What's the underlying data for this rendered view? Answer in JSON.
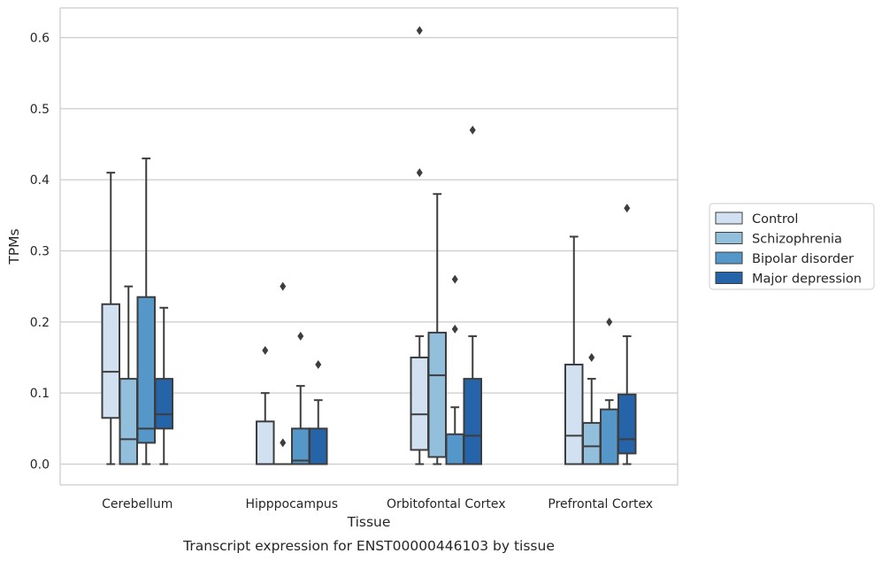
{
  "chart_data": {
    "type": "box",
    "caption": "Transcript expression for ENST00000446103 by tissue",
    "xlabel": "Tissue",
    "ylabel": "TPMs",
    "ylim": [
      -0.03,
      0.642
    ],
    "yticks": [
      "0.0",
      "0.1",
      "0.2",
      "0.3",
      "0.4",
      "0.5",
      "0.6"
    ],
    "grid": "horizontal",
    "legend_position": "right, outside plot",
    "categories": [
      "Cerebellum",
      "Hipppocampus",
      "Orbitofontal Cortex",
      "Prefrontal Cortex"
    ],
    "series": [
      {
        "name": "Control",
        "color": "#d1e1f1",
        "boxes": [
          {
            "whislo": 0.0,
            "q1": 0.065,
            "median": 0.13,
            "q3": 0.225,
            "whishi": 0.41,
            "fliers": []
          },
          {
            "whislo": 0.0,
            "q1": 0.0,
            "median": 0.0,
            "q3": 0.06,
            "whishi": 0.1,
            "fliers": [
              0.16
            ]
          },
          {
            "whislo": 0.0,
            "q1": 0.02,
            "median": 0.07,
            "q3": 0.15,
            "whishi": 0.18,
            "fliers": [
              0.41,
              0.61
            ]
          },
          {
            "whislo": 0.0,
            "q1": 0.0,
            "median": 0.04,
            "q3": 0.14,
            "whishi": 0.32,
            "fliers": []
          }
        ]
      },
      {
        "name": "Schizophrenia",
        "color": "#92bfdc",
        "boxes": [
          {
            "whislo": 0.0,
            "q1": 0.0,
            "median": 0.035,
            "q3": 0.12,
            "whishi": 0.25,
            "fliers": []
          },
          {
            "whislo": 0.0,
            "q1": 0.0,
            "median": 0.0,
            "q3": 0.0,
            "whishi": 0.0,
            "fliers": [
              0.03,
              0.25
            ]
          },
          {
            "whislo": 0.0,
            "q1": 0.01,
            "median": 0.125,
            "q3": 0.185,
            "whishi": 0.38,
            "fliers": []
          },
          {
            "whislo": 0.0,
            "q1": 0.0,
            "median": 0.025,
            "q3": 0.058,
            "whishi": 0.12,
            "fliers": [
              0.15
            ]
          }
        ]
      },
      {
        "name": "Bipolar disorder",
        "color": "#5597c8",
        "boxes": [
          {
            "whislo": 0.0,
            "q1": 0.03,
            "median": 0.05,
            "q3": 0.235,
            "whishi": 0.43,
            "fliers": []
          },
          {
            "whislo": 0.0,
            "q1": 0.0,
            "median": 0.005,
            "q3": 0.05,
            "whishi": 0.11,
            "fliers": [
              0.18
            ]
          },
          {
            "whislo": 0.0,
            "q1": 0.0,
            "median": 0.0,
            "q3": 0.042,
            "whishi": 0.08,
            "fliers": [
              0.19,
              0.26
            ]
          },
          {
            "whislo": 0.0,
            "q1": 0.0,
            "median": 0.0,
            "q3": 0.077,
            "whishi": 0.09,
            "fliers": [
              0.2
            ]
          }
        ]
      },
      {
        "name": "Major depression",
        "color": "#2664a9",
        "boxes": [
          {
            "whislo": 0.0,
            "q1": 0.05,
            "median": 0.07,
            "q3": 0.12,
            "whishi": 0.22,
            "fliers": []
          },
          {
            "whislo": 0.0,
            "q1": 0.0,
            "median": 0.0,
            "q3": 0.05,
            "whishi": 0.09,
            "fliers": [
              0.14
            ]
          },
          {
            "whislo": 0.0,
            "q1": 0.0,
            "median": 0.04,
            "q3": 0.12,
            "whishi": 0.18,
            "fliers": [
              0.47
            ]
          },
          {
            "whislo": 0.0,
            "q1": 0.015,
            "median": 0.035,
            "q3": 0.098,
            "whishi": 0.18,
            "fliers": [
              0.36
            ]
          }
        ]
      }
    ]
  }
}
